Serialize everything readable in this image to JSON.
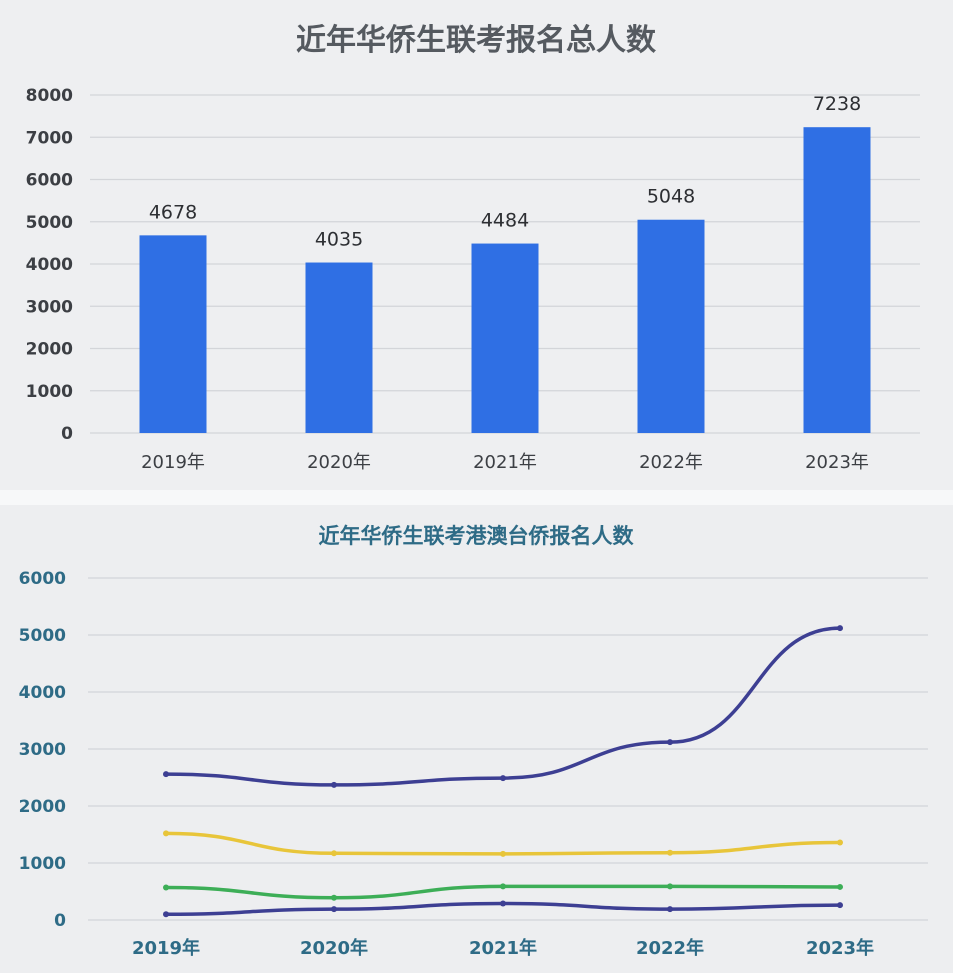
{
  "chart_data": [
    {
      "type": "bar",
      "title": "近年华侨生联考报名总人数",
      "categories": [
        "2019年",
        "2020年",
        "2021年",
        "2022年",
        "2023年"
      ],
      "values": [
        4678,
        4035,
        4484,
        5048,
        7238
      ],
      "data_labels": [
        "4678",
        "4035",
        "4484",
        "5048",
        "7238"
      ],
      "ylim": [
        0,
        8000
      ],
      "yticks": [
        0,
        1000,
        2000,
        3000,
        4000,
        5000,
        6000,
        7000,
        8000
      ],
      "grid": true,
      "colors": {
        "bar": "#2f6fe4",
        "grid": "#d3d5d9"
      }
    },
    {
      "type": "line",
      "title": "近年华侨生联考港澳台侨报名人数",
      "categories": [
        "2019年",
        "2020年",
        "2021年",
        "2022年",
        "2023年"
      ],
      "series": [
        {
          "values": [
            2560,
            2370,
            2490,
            3120,
            5120
          ],
          "color": "#3d3f93"
        },
        {
          "values": [
            1520,
            1170,
            1160,
            1180,
            1360
          ],
          "color": "#e8c53a"
        },
        {
          "values": [
            570,
            390,
            590,
            590,
            580
          ],
          "color": "#3dae57"
        },
        {
          "values": [
            100,
            190,
            290,
            190,
            260
          ],
          "color": "#3d3f93"
        }
      ],
      "ylim": [
        0,
        6000
      ],
      "yticks": [
        0,
        1000,
        2000,
        3000,
        4000,
        5000,
        6000
      ],
      "grid": true,
      "colors": {
        "grid": "#d3d5d9"
      }
    }
  ]
}
